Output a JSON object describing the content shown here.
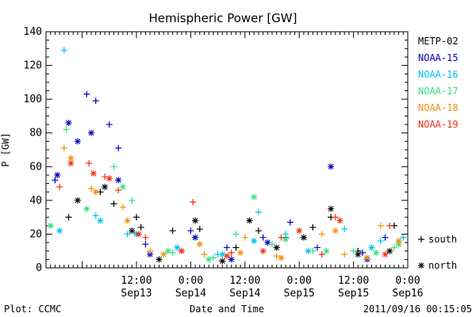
{
  "chart_data": {
    "type": "scatter",
    "title": "Hemispheric Power [GW]",
    "ylabel": "P [GW]",
    "xlabel": "Date and Time",
    "ylim": [
      0,
      140
    ],
    "yticks": [
      0,
      20,
      40,
      60,
      80,
      100,
      120,
      140
    ],
    "xlim": [
      "2011-09-12 16:00",
      "2011-09-16 00:00"
    ],
    "xticks": [
      {
        "time": "2011-09-13 12:00",
        "top": "12:00",
        "bottom": "Sep13"
      },
      {
        "time": "2011-09-14 00:00",
        "top": "0:00",
        "bottom": "Sep14"
      },
      {
        "time": "2011-09-14 12:00",
        "top": "12:00",
        "bottom": "Sep14"
      },
      {
        "time": "2011-09-15 00:00",
        "top": "0:00",
        "bottom": "Sep15"
      },
      {
        "time": "2011-09-15 12:00",
        "top": "12:00",
        "bottom": "Sep15"
      },
      {
        "time": "2011-09-16 00:00",
        "top": "0:00",
        "bottom": "Sep16"
      }
    ],
    "legend_position": "right",
    "marker_legend": [
      {
        "symbol": "+",
        "label": "south"
      },
      {
        "symbol": "*",
        "label": "north"
      }
    ],
    "series": [
      {
        "name": "METP-02",
        "color": "#000000",
        "plus": [
          [
            "09-12 21:00",
            30
          ],
          [
            "09-13 04:00",
            45
          ],
          [
            "09-13 07:00",
            38
          ],
          [
            "09-13 12:00",
            30
          ],
          [
            "09-13 13:00",
            24
          ],
          [
            "09-13 20:00",
            22
          ],
          [
            "09-14 02:00",
            23
          ],
          [
            "09-14 10:00",
            12
          ],
          [
            "09-14 15:00",
            22
          ],
          [
            "09-14 21:00",
            18
          ],
          [
            "09-15 03:00",
            24
          ],
          [
            "09-15 07:00",
            30
          ],
          [
            "09-15 13:00",
            10
          ],
          [
            "09-15 21:00",
            25
          ]
        ],
        "star": [
          [
            "09-12 23:00",
            40
          ],
          [
            "09-13 05:00",
            48
          ],
          [
            "09-13 11:00",
            22
          ],
          [
            "09-13 17:00",
            5
          ],
          [
            "09-14 01:00",
            28
          ],
          [
            "09-14 07:00",
            4
          ],
          [
            "09-14 13:00",
            28
          ],
          [
            "09-14 19:00",
            12
          ],
          [
            "09-15 01:00",
            18
          ],
          [
            "09-15 07:00",
            35
          ],
          [
            "09-15 13:00",
            8
          ],
          [
            "09-15 20:00",
            10
          ]
        ]
      },
      {
        "name": "NOAA-15",
        "color": "#0000c0",
        "plus": [
          [
            "09-12 18:00",
            52
          ],
          [
            "09-13 01:00",
            103
          ],
          [
            "09-13 03:00",
            99
          ],
          [
            "09-13 06:00",
            85
          ],
          [
            "09-13 08:00",
            71
          ],
          [
            "09-13 14:00",
            14
          ],
          [
            "09-14 00:00",
            22
          ],
          [
            "09-14 08:00",
            12
          ],
          [
            "09-14 16:00",
            18
          ],
          [
            "09-14 22:00",
            27
          ],
          [
            "09-15 04:00",
            12
          ],
          [
            "09-15 14:00",
            9
          ],
          [
            "09-15 19:00",
            18
          ]
        ],
        "star": [
          [
            "09-12 18:30",
            55
          ],
          [
            "09-12 21:00",
            86
          ],
          [
            "09-12 23:00",
            75
          ],
          [
            "09-13 02:00",
            80
          ],
          [
            "09-13 08:00",
            52
          ],
          [
            "09-13 15:00",
            8
          ],
          [
            "09-14 01:00",
            18
          ],
          [
            "09-14 09:00",
            5
          ],
          [
            "09-14 17:00",
            15
          ],
          [
            "09-15 07:00",
            60
          ],
          [
            "09-15 15:00",
            5
          ]
        ]
      },
      {
        "name": "NOAA-16",
        "color": "#00c0f0",
        "plus": [
          [
            "09-12 20:00",
            129
          ],
          [
            "09-13 03:00",
            31
          ],
          [
            "09-13 10:00",
            20
          ],
          [
            "09-13 22:00",
            10
          ],
          [
            "09-14 06:00",
            8
          ],
          [
            "09-14 15:00",
            33
          ],
          [
            "09-14 21:00",
            20
          ],
          [
            "09-15 10:00",
            23
          ],
          [
            "09-15 18:00",
            16
          ],
          [
            "09-15 23:00",
            18
          ]
        ],
        "star": [
          [
            "09-12 19:00",
            22
          ],
          [
            "09-13 04:00",
            28
          ],
          [
            "09-13 12:00",
            20
          ],
          [
            "09-13 21:00",
            12
          ],
          [
            "09-14 07:00",
            8
          ],
          [
            "09-14 14:00",
            16
          ],
          [
            "09-15 02:00",
            10
          ],
          [
            "09-15 16:00",
            12
          ]
        ]
      },
      {
        "name": "NOAA-17",
        "color": "#30e080",
        "plus": [
          [
            "09-12 20:30",
            82
          ],
          [
            "09-13 07:00",
            60
          ],
          [
            "09-13 11:00",
            40
          ],
          [
            "09-13 20:00",
            9
          ],
          [
            "09-14 05:00",
            6
          ],
          [
            "09-14 10:00",
            20
          ],
          [
            "09-14 18:00",
            14
          ],
          [
            "09-15 03:00",
            10
          ],
          [
            "09-15 12:00",
            10
          ],
          [
            "09-15 21:00",
            12
          ]
        ],
        "star": [
          [
            "09-12 17:00",
            25
          ],
          [
            "09-13 01:00",
            35
          ],
          [
            "09-13 09:00",
            48
          ],
          [
            "09-13 19:00",
            10
          ],
          [
            "09-14 04:00",
            5
          ],
          [
            "09-14 14:00",
            42
          ],
          [
            "09-14 21:00",
            17
          ],
          [
            "09-15 06:00",
            10
          ],
          [
            "09-15 17:00",
            9
          ],
          [
            "09-15 22:00",
            14
          ]
        ]
      },
      {
        "name": "NOAA-18",
        "color": "#f09010",
        "plus": [
          [
            "09-12 20:00",
            71
          ],
          [
            "09-13 02:00",
            47
          ],
          [
            "09-13 09:00",
            36
          ],
          [
            "09-13 15:00",
            10
          ],
          [
            "09-14 03:00",
            8
          ],
          [
            "09-14 12:00",
            18
          ],
          [
            "09-14 19:00",
            7
          ],
          [
            "09-15 05:00",
            20
          ],
          [
            "09-15 10:00",
            8
          ],
          [
            "09-15 18:00",
            25
          ]
        ],
        "star": [
          [
            "09-12 21:30",
            65
          ],
          [
            "09-13 03:00",
            45
          ],
          [
            "09-13 10:00",
            28
          ],
          [
            "09-13 18:00",
            8
          ],
          [
            "09-14 02:00",
            14
          ],
          [
            "09-14 11:00",
            9
          ],
          [
            "09-14 20:00",
            6
          ],
          [
            "09-15 08:00",
            22
          ],
          [
            "09-15 15:00",
            6
          ],
          [
            "09-15 22:00",
            16
          ]
        ]
      },
      {
        "name": "NOAA-19",
        "color": "#f03010",
        "plus": [
          [
            "09-12 19:00",
            48
          ],
          [
            "09-13 01:30",
            62
          ],
          [
            "09-13 05:00",
            54
          ],
          [
            "09-13 08:00",
            46
          ],
          [
            "09-13 14:00",
            18
          ],
          [
            "09-14 00:30",
            39
          ],
          [
            "09-14 09:00",
            9
          ],
          [
            "09-14 20:00",
            18
          ],
          [
            "09-15 05:00",
            8
          ],
          [
            "09-15 08:00",
            30
          ],
          [
            "09-15 20:00",
            25
          ]
        ],
        "star": [
          [
            "09-12 21:30",
            62
          ],
          [
            "09-13 02:30",
            56
          ],
          [
            "09-13 06:00",
            53
          ],
          [
            "09-13 12:30",
            20
          ],
          [
            "09-13 22:00",
            10
          ],
          [
            "09-14 08:00",
            7
          ],
          [
            "09-14 16:00",
            10
          ],
          [
            "09-15 00:00",
            22
          ],
          [
            "09-15 09:00",
            28
          ],
          [
            "09-15 19:00",
            8
          ]
        ]
      }
    ]
  },
  "footer": {
    "left": "Plot: CCMC",
    "right": "2011/09/16 00:15:05"
  }
}
